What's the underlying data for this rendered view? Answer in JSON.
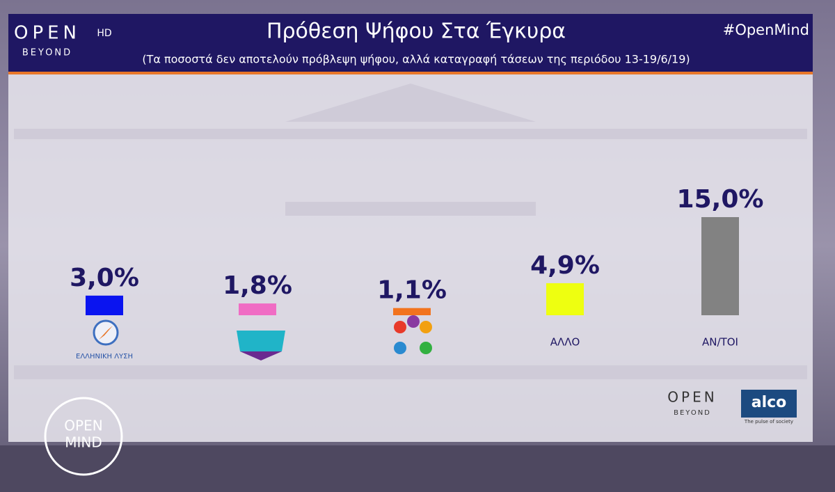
{
  "chart_data": {
    "type": "bar",
    "title": "Πρόθεση Ψήφου Στα Έγκυρα",
    "subtitle": "(Τα ποσοστά δεν αποτελούν πρόβλεψη ψήφου, αλλά καταγραφή τάσεων της περιόδου 13-19/6/19)",
    "categories": [
      "ΕΛΛΗΝΙΚΗ ΛΥΣΗ",
      null,
      null,
      "ΑΛΛΟ",
      "ΑΝ/ΤΟΙ"
    ],
    "values": [
      3.0,
      1.8,
      1.1,
      4.9,
      15.0
    ],
    "value_labels": [
      "3,0%",
      "1,8%",
      "1,1%",
      "4,9%",
      "15,0%"
    ],
    "colors": [
      "#0a14f0",
      "#f06cc4",
      "#f2731e",
      "#eeff10",
      "#828282"
    ]
  },
  "branding": {
    "hashtag": "#OpenMind",
    "channel": "OPEN",
    "channel_hd": "HD",
    "channel_sub": "BEYOND",
    "pollster": "alco",
    "pollster_tagline": "The pulse of society",
    "show_top": "OPEN",
    "show_bottom": "MIND"
  }
}
